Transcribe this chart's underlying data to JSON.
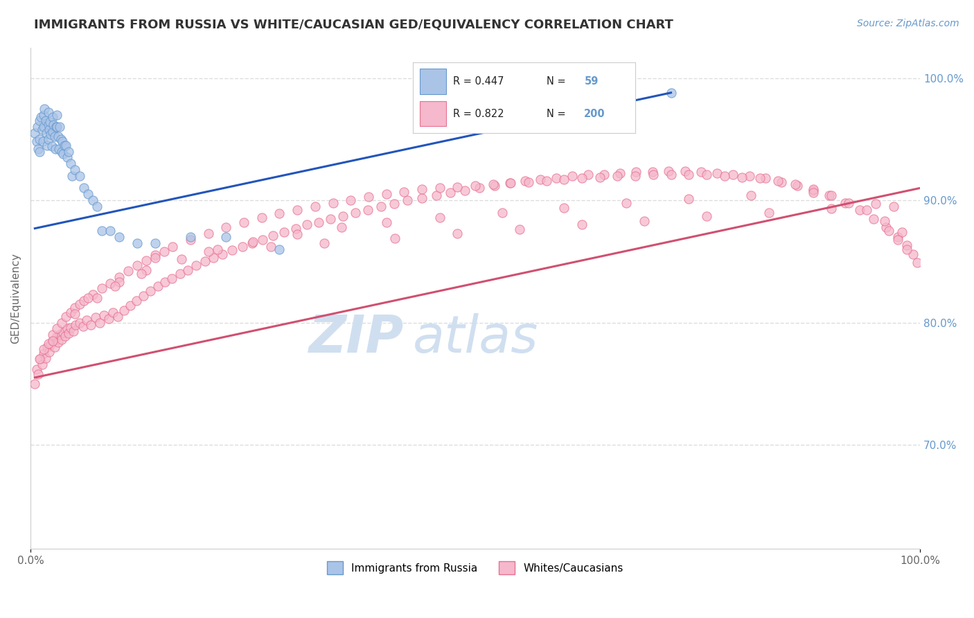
{
  "title": "IMMIGRANTS FROM RUSSIA VS WHITE/CAUCASIAN GED/EQUIVALENCY CORRELATION CHART",
  "source_text": "Source: ZipAtlas.com",
  "ylabel": "GED/Equivalency",
  "xmin": 0.0,
  "xmax": 1.0,
  "ymin": 0.615,
  "ymax": 1.025,
  "right_yticks": [
    1.0,
    0.9,
    0.8,
    0.7
  ],
  "right_yticklabels": [
    "100.0%",
    "90.0%",
    "80.0%",
    "70.0%"
  ],
  "blue_color": "#6699cc",
  "pink_color": "#e87090",
  "blue_scatter_color": "#aac4e8",
  "pink_scatter_color": "#f5b8cc",
  "blue_line_color": "#2255bb",
  "pink_line_color": "#d05070",
  "watermark_color": "#d0dff0",
  "grid_color": "#dddddd",
  "blue_trend_x": [
    0.005,
    0.72
  ],
  "blue_trend_y": [
    0.877,
    0.988
  ],
  "pink_trend_x": [
    0.005,
    1.0
  ],
  "pink_trend_y": [
    0.755,
    0.91
  ],
  "blue_points_x": [
    0.005,
    0.007,
    0.008,
    0.009,
    0.01,
    0.01,
    0.01,
    0.012,
    0.013,
    0.014,
    0.015,
    0.015,
    0.016,
    0.017,
    0.018,
    0.019,
    0.02,
    0.02,
    0.02,
    0.021,
    0.022,
    0.023,
    0.024,
    0.025,
    0.025,
    0.026,
    0.027,
    0.028,
    0.029,
    0.03,
    0.03,
    0.031,
    0.032,
    0.033,
    0.034,
    0.035,
    0.036,
    0.037,
    0.038,
    0.04,
    0.041,
    0.043,
    0.045,
    0.047,
    0.05,
    0.055,
    0.06,
    0.065,
    0.07,
    0.075,
    0.08,
    0.09,
    0.1,
    0.12,
    0.14,
    0.18,
    0.22,
    0.28,
    0.72
  ],
  "blue_points_y": [
    0.955,
    0.948,
    0.96,
    0.942,
    0.965,
    0.95,
    0.94,
    0.968,
    0.958,
    0.948,
    0.97,
    0.96,
    0.975,
    0.965,
    0.955,
    0.945,
    0.972,
    0.962,
    0.95,
    0.958,
    0.964,
    0.954,
    0.944,
    0.968,
    0.956,
    0.962,
    0.952,
    0.942,
    0.96,
    0.97,
    0.96,
    0.952,
    0.942,
    0.96,
    0.95,
    0.94,
    0.948,
    0.938,
    0.945,
    0.945,
    0.935,
    0.94,
    0.93,
    0.92,
    0.925,
    0.92,
    0.91,
    0.905,
    0.9,
    0.895,
    0.875,
    0.875,
    0.87,
    0.865,
    0.865,
    0.87,
    0.87,
    0.86,
    0.988
  ],
  "pink_points_x": [
    0.005,
    0.007,
    0.009,
    0.011,
    0.013,
    0.015,
    0.017,
    0.019,
    0.021,
    0.023,
    0.025,
    0.027,
    0.029,
    0.031,
    0.033,
    0.035,
    0.037,
    0.039,
    0.041,
    0.043,
    0.045,
    0.048,
    0.051,
    0.055,
    0.059,
    0.063,
    0.068,
    0.073,
    0.078,
    0.083,
    0.088,
    0.093,
    0.098,
    0.105,
    0.112,
    0.119,
    0.127,
    0.135,
    0.143,
    0.151,
    0.159,
    0.168,
    0.177,
    0.186,
    0.196,
    0.206,
    0.216,
    0.227,
    0.238,
    0.249,
    0.261,
    0.273,
    0.285,
    0.298,
    0.311,
    0.324,
    0.337,
    0.351,
    0.365,
    0.379,
    0.394,
    0.409,
    0.424,
    0.44,
    0.456,
    0.472,
    0.488,
    0.505,
    0.522,
    0.539,
    0.556,
    0.573,
    0.591,
    0.609,
    0.627,
    0.645,
    0.663,
    0.681,
    0.699,
    0.717,
    0.736,
    0.754,
    0.772,
    0.79,
    0.808,
    0.826,
    0.844,
    0.862,
    0.88,
    0.898,
    0.916,
    0.932,
    0.948,
    0.962,
    0.975,
    0.985,
    0.992,
    0.997,
    0.01,
    0.015,
    0.02,
    0.025,
    0.03,
    0.035,
    0.04,
    0.045,
    0.05,
    0.055,
    0.06,
    0.07,
    0.08,
    0.09,
    0.1,
    0.11,
    0.12,
    0.13,
    0.14,
    0.15,
    0.16,
    0.18,
    0.2,
    0.22,
    0.24,
    0.26,
    0.28,
    0.3,
    0.32,
    0.34,
    0.36,
    0.38,
    0.4,
    0.42,
    0.44,
    0.46,
    0.48,
    0.5,
    0.52,
    0.54,
    0.56,
    0.58,
    0.6,
    0.62,
    0.64,
    0.66,
    0.68,
    0.7,
    0.72,
    0.74,
    0.76,
    0.78,
    0.8,
    0.82,
    0.84,
    0.86,
    0.88,
    0.9,
    0.92,
    0.94,
    0.96,
    0.98,
    0.965,
    0.975,
    0.985,
    0.14,
    0.2,
    0.27,
    0.33,
    0.41,
    0.48,
    0.55,
    0.62,
    0.69,
    0.76,
    0.83,
    0.9,
    0.97,
    0.025,
    0.05,
    0.075,
    0.1,
    0.13,
    0.17,
    0.21,
    0.25,
    0.3,
    0.35,
    0.4,
    0.46,
    0.53,
    0.6,
    0.67,
    0.74,
    0.81,
    0.88,
    0.95,
    0.065,
    0.095,
    0.125
  ],
  "pink_points_y": [
    0.75,
    0.762,
    0.758,
    0.77,
    0.766,
    0.775,
    0.771,
    0.78,
    0.776,
    0.782,
    0.785,
    0.78,
    0.788,
    0.784,
    0.79,
    0.786,
    0.792,
    0.789,
    0.795,
    0.791,
    0.796,
    0.793,
    0.798,
    0.8,
    0.797,
    0.802,
    0.798,
    0.804,
    0.8,
    0.806,
    0.803,
    0.808,
    0.805,
    0.81,
    0.814,
    0.818,
    0.822,
    0.826,
    0.83,
    0.833,
    0.836,
    0.84,
    0.843,
    0.847,
    0.85,
    0.853,
    0.856,
    0.859,
    0.862,
    0.865,
    0.868,
    0.871,
    0.874,
    0.877,
    0.88,
    0.882,
    0.885,
    0.887,
    0.89,
    0.892,
    0.895,
    0.897,
    0.9,
    0.902,
    0.904,
    0.906,
    0.908,
    0.91,
    0.912,
    0.914,
    0.916,
    0.917,
    0.918,
    0.92,
    0.921,
    0.921,
    0.922,
    0.923,
    0.923,
    0.924,
    0.924,
    0.923,
    0.922,
    0.921,
    0.92,
    0.918,
    0.915,
    0.912,
    0.908,
    0.904,
    0.898,
    0.892,
    0.885,
    0.878,
    0.87,
    0.863,
    0.856,
    0.849,
    0.77,
    0.778,
    0.783,
    0.79,
    0.795,
    0.8,
    0.805,
    0.808,
    0.812,
    0.815,
    0.818,
    0.823,
    0.828,
    0.832,
    0.837,
    0.842,
    0.847,
    0.851,
    0.855,
    0.858,
    0.862,
    0.868,
    0.873,
    0.878,
    0.882,
    0.886,
    0.889,
    0.892,
    0.895,
    0.898,
    0.9,
    0.903,
    0.905,
    0.907,
    0.909,
    0.91,
    0.911,
    0.912,
    0.913,
    0.914,
    0.915,
    0.916,
    0.917,
    0.918,
    0.919,
    0.92,
    0.92,
    0.921,
    0.921,
    0.921,
    0.921,
    0.92,
    0.919,
    0.918,
    0.916,
    0.913,
    0.909,
    0.904,
    0.898,
    0.892,
    0.883,
    0.874,
    0.875,
    0.868,
    0.86,
    0.853,
    0.858,
    0.862,
    0.865,
    0.869,
    0.873,
    0.876,
    0.88,
    0.883,
    0.887,
    0.89,
    0.893,
    0.895,
    0.785,
    0.807,
    0.82,
    0.833,
    0.843,
    0.852,
    0.86,
    0.866,
    0.872,
    0.878,
    0.882,
    0.886,
    0.89,
    0.894,
    0.898,
    0.901,
    0.904,
    0.906,
    0.897,
    0.82,
    0.83,
    0.84
  ]
}
